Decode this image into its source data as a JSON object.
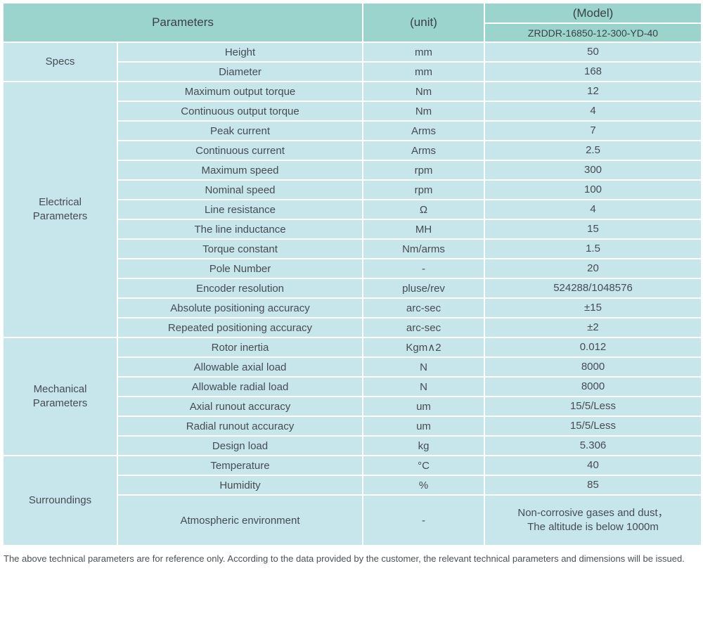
{
  "table": {
    "header": {
      "parameters_label": "Parameters",
      "unit_label": "(unit)",
      "model_label": "(Model)",
      "model_value": "ZRDDR-16850-12-300-YD-40"
    },
    "colors": {
      "header_bg": "#9bd4cd",
      "row_bg": "#c7e6ec",
      "grid": "#ffffff",
      "text": "#454c52"
    },
    "sections": [
      {
        "name": "Specs",
        "rows": [
          {
            "param": "Height",
            "unit": "mm",
            "value": "50"
          },
          {
            "param": "Diameter",
            "unit": "mm",
            "value": "168"
          }
        ]
      },
      {
        "name": "Electrical\nParameters",
        "rows": [
          {
            "param": "Maximum output torque",
            "unit": "Nm",
            "value": "12"
          },
          {
            "param": "Continuous output torque",
            "unit": "Nm",
            "value": "4"
          },
          {
            "param": "Peak current",
            "unit": "Arms",
            "value": "7"
          },
          {
            "param": "Continuous current",
            "unit": "Arms",
            "value": "2.5"
          },
          {
            "param": "Maximum speed",
            "unit": "rpm",
            "value": "300"
          },
          {
            "param": "Nominal speed",
            "unit": "rpm",
            "value": "100"
          },
          {
            "param": "Line resistance",
            "unit": "Ω",
            "value": "4"
          },
          {
            "param": "The line inductance",
            "unit": "MH",
            "value": "15"
          },
          {
            "param": "Torque constant",
            "unit": "Nm/arms",
            "value": "1.5"
          },
          {
            "param": "Pole Number",
            "unit": "-",
            "value": "20"
          },
          {
            "param": "Encoder resolution",
            "unit": "pluse/rev",
            "value": "524288/1048576"
          },
          {
            "param": "Absolute positioning accuracy",
            "unit": "arc-sec",
            "value": "±15"
          },
          {
            "param": "Repeated positioning accuracy",
            "unit": "arc-sec",
            "value": "±2"
          }
        ]
      },
      {
        "name": "Mechanical\nParameters",
        "rows": [
          {
            "param": "Rotor inertia",
            "unit": "Kgm∧2",
            "value": "0.012"
          },
          {
            "param": "Allowable axial load",
            "unit": "N",
            "value": "8000"
          },
          {
            "param": "Allowable radial load",
            "unit": "N",
            "value": "8000"
          },
          {
            "param": "Axial runout accuracy",
            "unit": "um",
            "value": "15/5/Less"
          },
          {
            "param": "Radial runout accuracy",
            "unit": "um",
            "value": "15/5/Less"
          },
          {
            "param": "Design load",
            "unit": "kg",
            "value": "5.306"
          }
        ]
      },
      {
        "name": "Surroundings",
        "rows": [
          {
            "param": "Temperature",
            "unit": "°C",
            "value": "40"
          },
          {
            "param": "Humidity",
            "unit": "%",
            "value": "85"
          },
          {
            "param": "Atmospheric environment",
            "unit": "-",
            "value": "Non-corrosive gases and dust，\nThe altitude is below 1000m",
            "tall": true
          }
        ]
      }
    ]
  },
  "footer": {
    "note": "The above technical parameters are for reference only. According to the data provided by the customer, the relevant technical parameters and dimensions will be issued."
  }
}
